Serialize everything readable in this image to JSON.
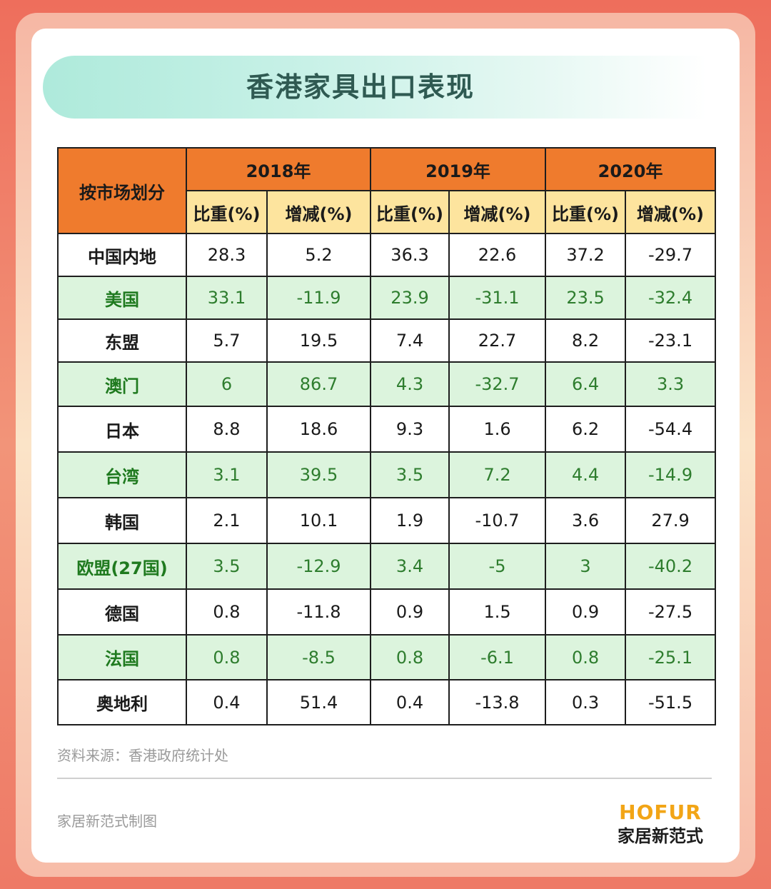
{
  "title": "香港家具出口表现",
  "colors": {
    "header_orange": "#ef7b2d",
    "subheader_yellow": "#fde49e",
    "alt_row_green": "#dcf4dd",
    "alt_text_green": "#2e7d2e",
    "title_teal": "#aeeadb",
    "logo_orange": "#f2a516"
  },
  "chart_data": {
    "type": "table",
    "title": "香港家具出口表现",
    "row_header_label": "按市场划分",
    "years": [
      "2018年",
      "2019年",
      "2020年"
    ],
    "sub_columns": [
      "比重(%)",
      "增减(%)"
    ],
    "rows": [
      {
        "market": "中国内地",
        "values": [
          "28.3",
          "5.2",
          "36.3",
          "22.6",
          "37.2",
          "-29.7"
        ]
      },
      {
        "market": "美国",
        "values": [
          "33.1",
          "-11.9",
          "23.9",
          "-31.1",
          "23.5",
          "-32.4"
        ]
      },
      {
        "market": "东盟",
        "values": [
          "5.7",
          "19.5",
          "7.4",
          "22.7",
          "8.2",
          "-23.1"
        ]
      },
      {
        "market": "澳门",
        "values": [
          "6",
          "86.7",
          "4.3",
          "-32.7",
          "6.4",
          "3.3"
        ]
      },
      {
        "market": "日本",
        "values": [
          "8.8",
          "18.6",
          "9.3",
          "1.6",
          "6.2",
          "-54.4"
        ]
      },
      {
        "market": "台湾",
        "values": [
          "3.1",
          "39.5",
          "3.5",
          "7.2",
          "4.4",
          "-14.9"
        ]
      },
      {
        "market": "韩国",
        "values": [
          "2.1",
          "10.1",
          "1.9",
          "-10.7",
          "3.6",
          "27.9"
        ]
      },
      {
        "market": "欧盟(27国)",
        "values": [
          "3.5",
          "-12.9",
          "3.4",
          "-5",
          "3",
          "-40.2"
        ]
      },
      {
        "market": "德国",
        "values": [
          "0.8",
          "-11.8",
          "0.9",
          "1.5",
          "0.9",
          "-27.5"
        ]
      },
      {
        "market": "法国",
        "values": [
          "0.8",
          "-8.5",
          "0.8",
          "-6.1",
          "0.8",
          "-25.1"
        ]
      },
      {
        "market": "奥地利",
        "values": [
          "0.4",
          "51.4",
          "0.4",
          "-13.8",
          "0.3",
          "-51.5"
        ]
      }
    ]
  },
  "footer": {
    "source": "资料来源：香港政府统计处",
    "credit": "家居新范式制图",
    "logo_en": "HOFUR",
    "logo_cn": "家居新范式"
  }
}
